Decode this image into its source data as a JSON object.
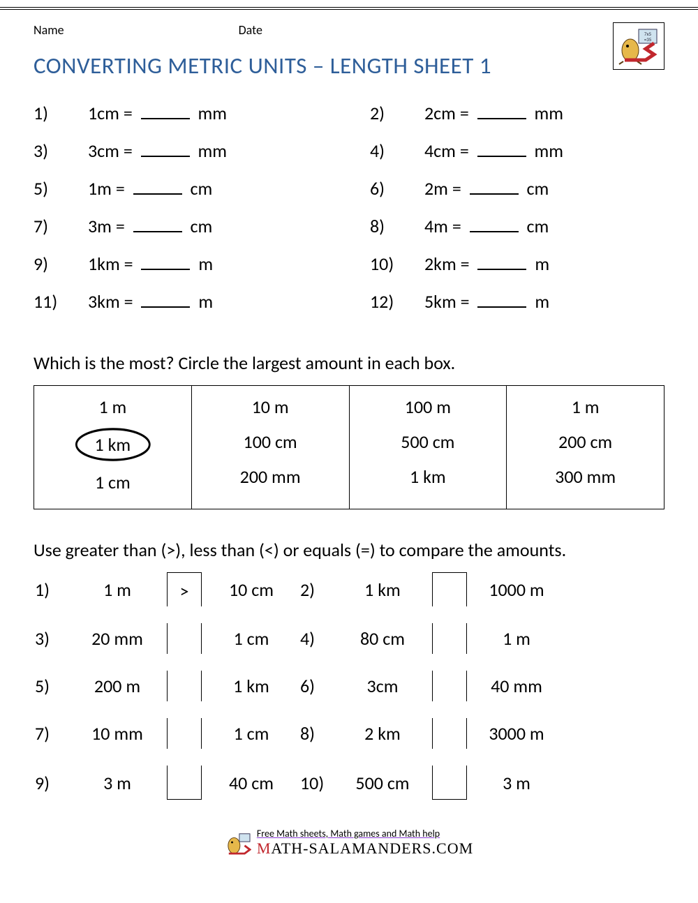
{
  "header": {
    "name_label": "Name",
    "date_label": "Date"
  },
  "title": "CONVERTING METRIC UNITS – LENGTH SHEET 1",
  "colors": {
    "title": "#2e5e99",
    "text": "#000000",
    "underline": "#8a3bd6"
  },
  "problems": [
    {
      "n": "1)",
      "lhs": "1cm =",
      "unit": "mm"
    },
    {
      "n": "2)",
      "lhs": "2cm =",
      "unit": "mm"
    },
    {
      "n": "3)",
      "lhs": "3cm =",
      "unit": "mm"
    },
    {
      "n": "4)",
      "lhs": "4cm =",
      "unit": "mm"
    },
    {
      "n": "5)",
      "lhs": "1m =",
      "unit": "cm"
    },
    {
      "n": "6)",
      "lhs": "2m =",
      "unit": "cm"
    },
    {
      "n": "7)",
      "lhs": "3m =",
      "unit": "cm"
    },
    {
      "n": "8)",
      "lhs": "4m =",
      "unit": "cm"
    },
    {
      "n": "9)",
      "lhs": "1km =",
      "unit": "m"
    },
    {
      "n": "10)",
      "lhs": "2km =",
      "unit": "m"
    },
    {
      "n": "11)",
      "lhs": "3km =",
      "unit": "m"
    },
    {
      "n": "12)",
      "lhs": "5km =",
      "unit": "m"
    }
  ],
  "section2": {
    "instruction": "Which is the most? Circle the largest amount in each box.",
    "columns": [
      {
        "items": [
          "1 m",
          "1 km",
          "1 cm"
        ],
        "circled_index": 1
      },
      {
        "items": [
          "10 m",
          "100 cm",
          "200 mm"
        ],
        "circled_index": null
      },
      {
        "items": [
          "100 m",
          "500 cm",
          "1 km"
        ],
        "circled_index": null
      },
      {
        "items": [
          "1 m",
          "200 cm",
          "300 mm"
        ],
        "circled_index": null
      }
    ]
  },
  "section3": {
    "instruction": "Use greater than (>), less than (<) or equals (=) to compare the amounts.",
    "rows": [
      {
        "ln": "1)",
        "l": "1 m",
        "op": ">",
        "r": "10 cm",
        "rn": "2)",
        "l2": "1 km",
        "op2": "",
        "r2": "1000 m"
      },
      {
        "ln": "3)",
        "l": "20 mm",
        "op": "",
        "r": "1 cm",
        "rn": "4)",
        "l2": "80 cm",
        "op2": "",
        "r2": "1 m"
      },
      {
        "ln": "5)",
        "l": "200 m",
        "op": "",
        "r": "1 km",
        "rn": "6)",
        "l2": "3cm",
        "op2": "",
        "r2": "40 mm"
      },
      {
        "ln": "7)",
        "l": "10 mm",
        "op": "",
        "r": "1 cm",
        "rn": "8)",
        "l2": "2 km",
        "op2": "",
        "r2": "3000 m"
      },
      {
        "ln": "9)",
        "l": "3 m",
        "op": "",
        "r": "40 cm",
        "rn": "10)",
        "l2": "500 cm",
        "op2": "",
        "r2": "3 m"
      }
    ]
  },
  "footer": {
    "tagline": "Free Math sheets, Math games and Math help",
    "brand": "ATH-SALAMANDERS.COM"
  }
}
